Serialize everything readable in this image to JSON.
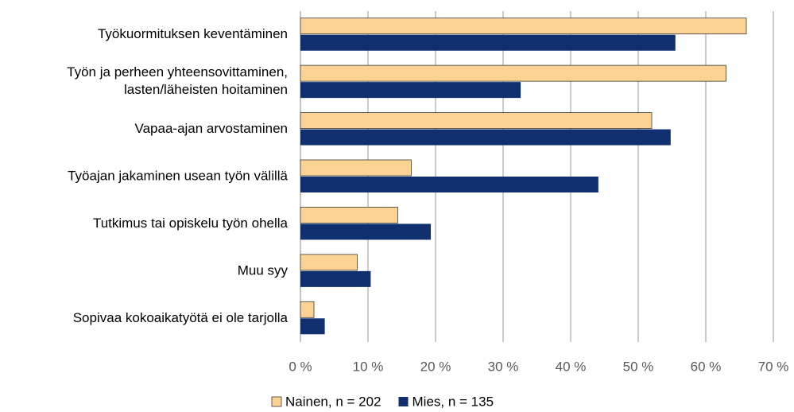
{
  "chart_data": {
    "type": "bar",
    "orientation": "horizontal",
    "categories": [
      "Työkuormituksen keventäminen",
      "Työn ja perheen yhteensovittaminen,\nlasten/läheisten hoitaminen",
      "Vapaa-ajan arvostaminen",
      "Työajan jakaminen usean työn välillä",
      "Tutkimus tai opiskelu työn ohella",
      "Muu syy",
      "Sopivaa kokoaikatyötä ei ole tarjolla"
    ],
    "series": [
      {
        "name": "Nainen, n = 202",
        "color": "#fdd394",
        "values": [
          66,
          63,
          52,
          16.4,
          14.4,
          8.4,
          2
        ]
      },
      {
        "name": "Mies, n = 135",
        "color": "#0f2f6e",
        "values": [
          55.5,
          32.6,
          54.8,
          44.1,
          19.3,
          10.4,
          3.6
        ]
      }
    ],
    "xlim": [
      0,
      70
    ],
    "xticks": [
      {
        "value": 0,
        "label": "0 %"
      },
      {
        "value": 10,
        "label": "10 %"
      },
      {
        "value": 20,
        "label": "20 %"
      },
      {
        "value": 30,
        "label": "30 %"
      },
      {
        "value": 40,
        "label": "40 %"
      },
      {
        "value": 50,
        "label": "50 %"
      },
      {
        "value": 60,
        "label": "60 %"
      },
      {
        "value": 70,
        "label": "70 %"
      }
    ],
    "grid": true,
    "legend": "bottom"
  }
}
